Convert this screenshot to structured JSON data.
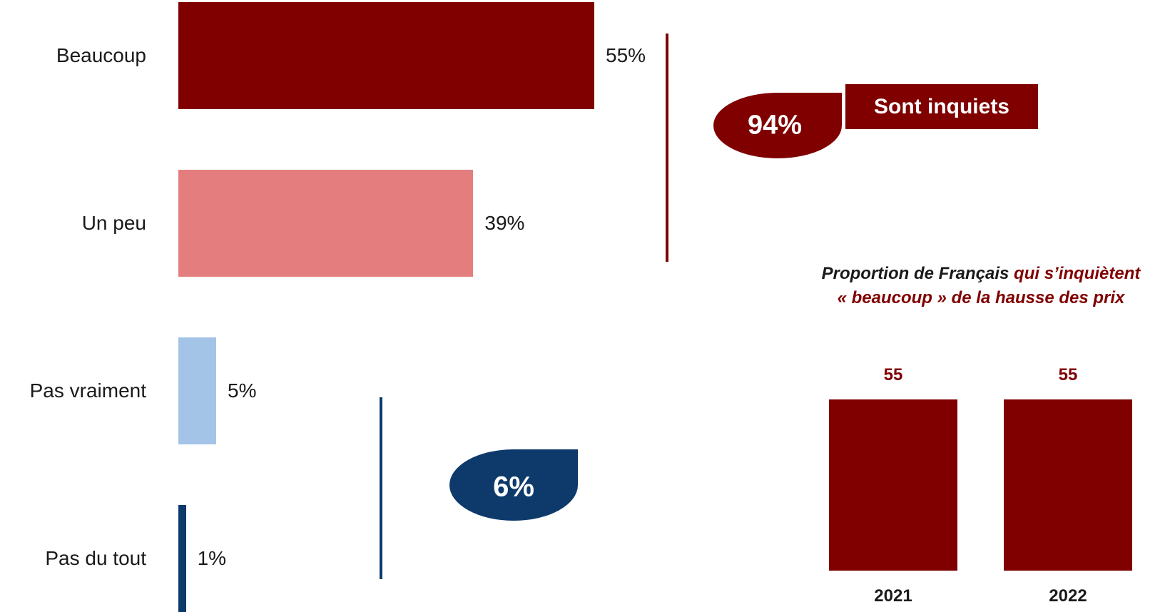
{
  "chart_data": [
    {
      "type": "bar",
      "orientation": "horizontal",
      "categories": [
        "Beaucoup",
        "Un peu",
        "Pas vraiment",
        "Pas du tout"
      ],
      "values": [
        55,
        39,
        5,
        1
      ],
      "value_labels": [
        "55%",
        "39%",
        "5%",
        "1%"
      ],
      "colors": [
        "#800000",
        "#E47E7E",
        "#A3C4E7",
        "#0E3A6B"
      ],
      "xlim": [
        0,
        55
      ],
      "summaries": [
        {
          "value": "94%",
          "label": "Sont inquiets",
          "color": "#800000"
        },
        {
          "value": "6%",
          "label": "",
          "color": "#0E3A6B"
        }
      ]
    },
    {
      "type": "bar",
      "orientation": "vertical",
      "title_part1": "Proportion de Français ",
      "title_part2": "qui s’inquiètent",
      "title_line2": "« beaucoup » de la hausse des prix",
      "categories": [
        "2021",
        "2022"
      ],
      "values": [
        55,
        55
      ],
      "value_labels": [
        "55",
        "55"
      ],
      "ylim": [
        0,
        55
      ],
      "color": "#800000",
      "title_colors": [
        "#1a1a1a",
        "#800000"
      ]
    }
  ]
}
